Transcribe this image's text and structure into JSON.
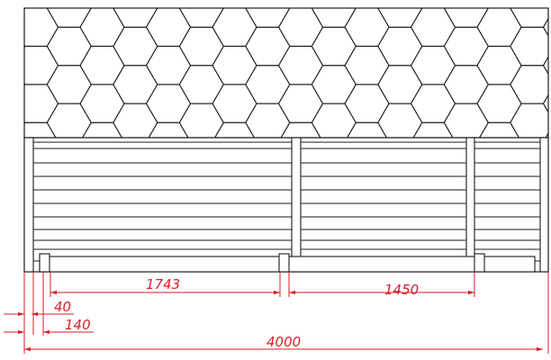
{
  "drawing": {
    "type": "technical-elevation",
    "subject": "shed / outbuilding front elevation with hexagonal shingle roof",
    "roof_pattern": "hexagon-shingles",
    "wall_pattern": "horizontal-boards",
    "line_color": "#1a1a1a",
    "dimension_color": "#d81e2a"
  },
  "dimensions": {
    "span_left": "1743",
    "span_right": "1450",
    "offset_small": "40",
    "offset_medium": "140",
    "overall": "4000"
  }
}
